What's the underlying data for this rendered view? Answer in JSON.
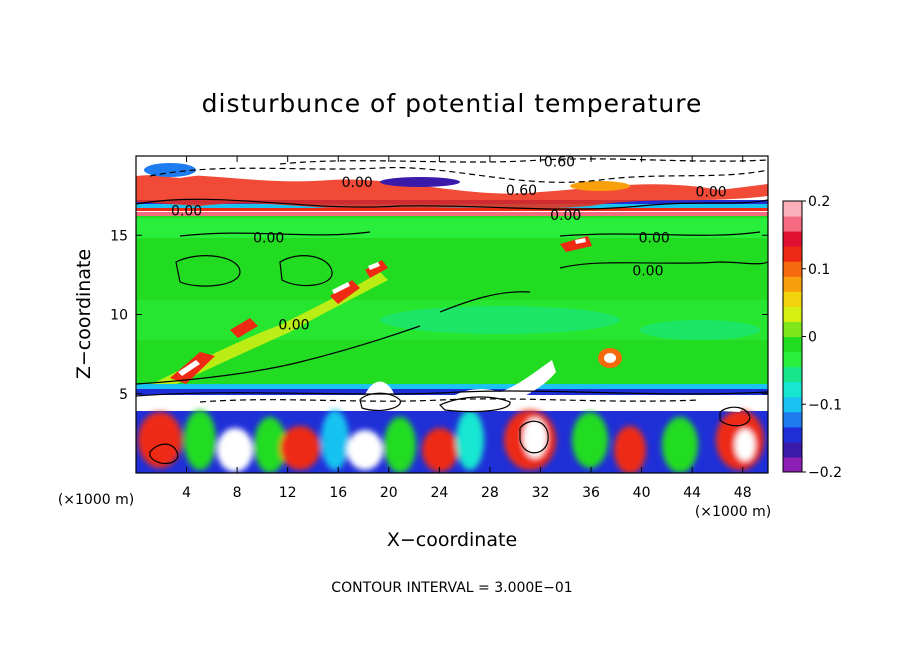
{
  "chart_data": {
    "type": "heatmap",
    "title": "disturbunce of potential temperature",
    "xlabel": "X−coordinate",
    "ylabel": "Z−coordinate",
    "x_unit": "(×1000 m)",
    "z_unit": "(×1000 m)",
    "xlim": [
      0,
      50
    ],
    "zlim": [
      0,
      20
    ],
    "x_ticks": [
      4,
      8,
      12,
      16,
      20,
      24,
      28,
      32,
      36,
      40,
      44,
      48
    ],
    "z_ticks": [
      5,
      10,
      15
    ],
    "colorbar": {
      "range": [
        -0.2,
        0.2
      ],
      "ticks": [
        {
          "value": 0.2,
          "label": "0.2"
        },
        {
          "value": 0.1,
          "label": "0.1"
        },
        {
          "value": 0,
          "label": "0"
        },
        {
          "value": -0.1,
          "label": "−0.1"
        },
        {
          "value": -0.2,
          "label": "−0.2"
        }
      ],
      "colors": [
        "#8e1fb5",
        "#3a1aa8",
        "#1f2fd8",
        "#1e7cf0",
        "#19c2f0",
        "#17e6d2",
        "#17e68a",
        "#2aee3c",
        "#22dc22",
        "#7ee61a",
        "#d6ee12",
        "#f3d20e",
        "#f7a00c",
        "#f46a0c",
        "#ee2a14",
        "#e01030",
        "#f46a80",
        "#f9b0b8"
      ]
    },
    "contour_interval": "CONTOUR INTERVAL = 3.000E−01",
    "contour_labels": [
      {
        "text": "0.60",
        "x": 33.5,
        "z": 19.6
      },
      {
        "text": "0.00",
        "x": 17.5,
        "z": 18.3
      },
      {
        "text": "0.60",
        "x": 30.5,
        "z": 17.8
      },
      {
        "text": "0.00",
        "x": 45.5,
        "z": 17.7
      },
      {
        "text": "0.00",
        "x": 4.0,
        "z": 16.5
      },
      {
        "text": "0.00",
        "x": 34.0,
        "z": 16.2
      },
      {
        "text": "0.00",
        "x": 10.5,
        "z": 14.8
      },
      {
        "text": "0.00",
        "x": 41.0,
        "z": 14.8
      },
      {
        "text": "0.00",
        "x": 40.5,
        "z": 12.7
      },
      {
        "text": "0.00",
        "x": 12.5,
        "z": 9.3
      }
    ]
  }
}
